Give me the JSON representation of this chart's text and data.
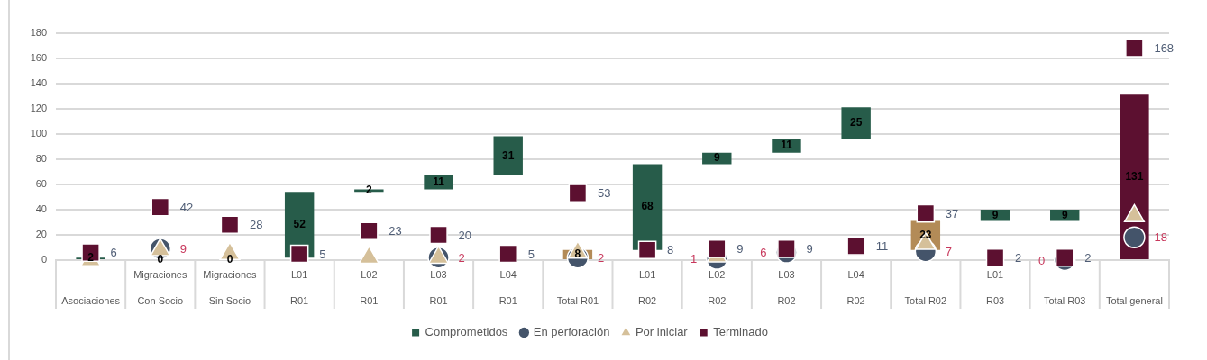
{
  "chart_data": {
    "type": "bar",
    "categories": [
      "Asociaciones",
      "Migraciones Con Socio",
      "Migraciones Sin Socio",
      "L01\nR01",
      "L02\nR01",
      "L03\nR01",
      "L04\nR01",
      "Total R01",
      "L01\nR02",
      "L02\nR02",
      "L03\nR02",
      "L04\nR02",
      "Total R02",
      "L01\nR03",
      "Total R03",
      "Total general"
    ],
    "series": [
      {
        "name": "Comprometidos",
        "color": "#275c4a",
        "colors": [
          "#275c4a",
          "#275c4a",
          "#275c4a",
          "#275c4a",
          "#275c4a",
          "#275c4a",
          "#275c4a",
          "#b38b57",
          "#275c4a",
          "#275c4a",
          "#275c4a",
          "#275c4a",
          "#b38b57",
          "#275c4a",
          "#275c4a",
          "#5c1030"
        ],
        "base": [
          0,
          null,
          null,
          2,
          54,
          56,
          67,
          0,
          8,
          76,
          85,
          96,
          8,
          31,
          31,
          0
        ],
        "values": [
          2,
          0,
          0,
          52,
          2,
          11,
          31,
          8,
          68,
          9,
          11,
          25,
          23,
          9,
          9,
          131
        ],
        "value_labels": [
          "2",
          "0",
          "0",
          "52",
          "2",
          "11",
          "31",
          "8",
          "68",
          "9",
          "11",
          "25",
          "23",
          "9",
          "9",
          "131"
        ]
      },
      {
        "name": "En perforación",
        "type": "scatter",
        "marker": "circle",
        "color": "#44546a",
        "x": [
          "Asociaciones",
          "Migraciones Con Socio",
          "Migraciones Sin Socio",
          "L01\nR01",
          "L02\nR01",
          "L03\nR01",
          "L04\nR01",
          "Total R01",
          "L01\nR02",
          "L02\nR02",
          "L03\nR02",
          "L04\nR02",
          "Total R02",
          "L01\nR03",
          "Total R03",
          "Total general"
        ],
        "values": [
          null,
          9,
          null,
          null,
          null,
          2,
          null,
          2,
          null,
          1,
          6,
          null,
          7,
          null,
          0,
          18
        ],
        "value_labels": [
          null,
          "9",
          null,
          null,
          null,
          "2",
          null,
          "2",
          null,
          "1",
          "6",
          null,
          "7",
          null,
          "0",
          "18"
        ]
      },
      {
        "name": "Por iniciar",
        "type": "scatter",
        "marker": "triangle",
        "color": "#d5c09a",
        "x": [
          "Asociaciones",
          "Migraciones Con Socio",
          "Migraciones Sin Socio",
          "L01\nR01",
          "L02\nR01",
          "L03\nR01",
          "L04\nR01",
          "Total R01",
          "L01\nR02",
          "L02\nR02",
          "L03\nR02",
          "L04\nR02",
          "Total R02",
          "L01\nR03",
          "Total R03",
          "Total general"
        ],
        "values": [
          0,
          8,
          5,
          null,
          2,
          2,
          null,
          6,
          null,
          3,
          null,
          null,
          13,
          null,
          null,
          35
        ]
      },
      {
        "name": "Terminado",
        "type": "scatter",
        "marker": "square",
        "color": "#5c1030",
        "x": [
          "Asociaciones",
          "Migraciones Con Socio",
          "Migraciones Sin Socio",
          "L01\nR01",
          "L02\nR01",
          "L03\nR01",
          "L04\nR01",
          "Total R01",
          "L01\nR02",
          "L02\nR02",
          "L03\nR02",
          "L04\nR02",
          "Total R02",
          "L01\nR03",
          "Total R03",
          "Total general"
        ],
        "values": [
          6,
          42,
          28,
          5,
          23,
          20,
          5,
          53,
          8,
          9,
          9,
          11,
          37,
          2,
          2,
          168
        ],
        "value_labels": [
          "6",
          "42",
          "28",
          "5",
          "23",
          "20",
          "5",
          "53",
          "8",
          "9",
          "9",
          "11",
          "37",
          "2",
          "2",
          "168"
        ]
      }
    ],
    "ylim": [
      0,
      180
    ],
    "yticks": [
      0,
      20,
      40,
      60,
      80,
      100,
      120,
      140,
      160,
      180
    ],
    "grid": "y",
    "legend": "bottom"
  }
}
